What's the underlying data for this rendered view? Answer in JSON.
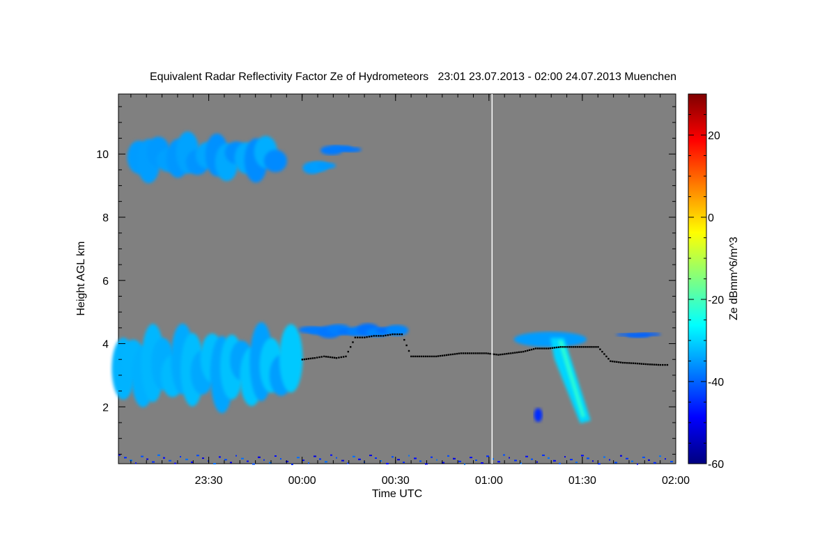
{
  "chart_data": {
    "type": "heatmap",
    "title": "Equivalent Radar Reflectivity Factor Ze of Hydrometeors   23:01 23.07.2013 - 02:00 24.07.2013 Muenchen",
    "xlabel": "Time UTC",
    "ylabel": "Height AGL km",
    "x_unit": "minutes after 23:01 UTC",
    "xlim": [
      0,
      179
    ],
    "ylim": [
      0.2,
      11.9
    ],
    "x_ticks": [
      {
        "value": 29,
        "label": "23:30"
      },
      {
        "value": 59,
        "label": "00:00"
      },
      {
        "value": 89,
        "label": "00:30"
      },
      {
        "value": 119,
        "label": "01:00"
      },
      {
        "value": 149,
        "label": "01:30"
      },
      {
        "value": 179,
        "label": "02:00"
      }
    ],
    "y_ticks": [
      {
        "value": 2,
        "label": "2"
      },
      {
        "value": 4,
        "label": "4"
      },
      {
        "value": 6,
        "label": "6"
      },
      {
        "value": 8,
        "label": "8"
      },
      {
        "value": 10,
        "label": "10"
      }
    ],
    "colorbar": {
      "label": "Ze dBmm^6/m^3",
      "range": [
        -60,
        30
      ],
      "ticks": [
        {
          "value": -60,
          "label": "-60"
        },
        {
          "value": -40,
          "label": "-40"
        },
        {
          "value": -20,
          "label": "-20"
        },
        {
          "value": 0,
          "label": "0"
        },
        {
          "value": 20,
          "label": "20"
        }
      ],
      "colors": [
        "#00007f",
        "#0000ff",
        "#0080ff",
        "#00ffff",
        "#80ff80",
        "#ffff00",
        "#ff8000",
        "#ff0000",
        "#7f0000"
      ]
    },
    "background_color": "#808080",
    "cloud_regions": [
      {
        "description": "cirrus layer",
        "x_range": [
          5,
          52
        ],
        "y_range": [
          9.2,
          10.6
        ],
        "ze_db": -35
      },
      {
        "description": "small cirrus patch",
        "x_range": [
          61,
          68
        ],
        "y_range": [
          9.4,
          9.8
        ],
        "ze_db": -35
      },
      {
        "description": "small cirrus patch",
        "x_range": [
          67,
          76
        ],
        "y_range": [
          10.0,
          10.3
        ],
        "ze_db": -38
      },
      {
        "description": "low cloud base layer",
        "x_range": [
          0,
          57
        ],
        "y_range": [
          2.0,
          4.5
        ],
        "ze_db": -33
      },
      {
        "description": "thin layer",
        "x_range": [
          60,
          91
        ],
        "y_range": [
          4.2,
          4.6
        ],
        "ze_db": -38
      },
      {
        "description": "convective cell with fall streak",
        "x_range": [
          127,
          153
        ],
        "y_range": [
          1.3,
          4.4
        ],
        "ze_db": -30
      },
      {
        "description": "thin layer",
        "x_range": [
          162,
          172
        ],
        "y_range": [
          4.2,
          4.35
        ],
        "ze_db": -40
      },
      {
        "description": "surface clutter",
        "x_range": [
          0,
          179
        ],
        "y_range": [
          0.2,
          0.5
        ],
        "ze_db": -45
      }
    ],
    "cloud_base_line": [
      {
        "x": 59,
        "y": 3.5
      },
      {
        "x": 63,
        "y": 3.55
      },
      {
        "x": 66,
        "y": 3.6
      },
      {
        "x": 70,
        "y": 3.55
      },
      {
        "x": 73,
        "y": 3.6
      },
      {
        "x": 76,
        "y": 4.2
      },
      {
        "x": 79,
        "y": 4.2
      },
      {
        "x": 82,
        "y": 4.25
      },
      {
        "x": 85,
        "y": 4.25
      },
      {
        "x": 88,
        "y": 4.3
      },
      {
        "x": 91,
        "y": 4.3
      },
      {
        "x": 94,
        "y": 3.6
      },
      {
        "x": 98,
        "y": 3.6
      },
      {
        "x": 102,
        "y": 3.6
      },
      {
        "x": 106,
        "y": 3.65
      },
      {
        "x": 110,
        "y": 3.7
      },
      {
        "x": 114,
        "y": 3.7
      },
      {
        "x": 118,
        "y": 3.7
      },
      {
        "x": 122,
        "y": 3.65
      },
      {
        "x": 126,
        "y": 3.7
      },
      {
        "x": 130,
        "y": 3.75
      },
      {
        "x": 134,
        "y": 3.85
      },
      {
        "x": 138,
        "y": 3.85
      },
      {
        "x": 142,
        "y": 3.9
      },
      {
        "x": 146,
        "y": 3.9
      },
      {
        "x": 150,
        "y": 3.9
      },
      {
        "x": 154,
        "y": 3.9
      },
      {
        "x": 158,
        "y": 3.45
      },
      {
        "x": 162,
        "y": 3.4
      },
      {
        "x": 166,
        "y": 3.38
      },
      {
        "x": 170,
        "y": 3.35
      },
      {
        "x": 174,
        "y": 3.33
      },
      {
        "x": 177,
        "y": 3.33
      }
    ],
    "vertical_marker": {
      "x": 120,
      "color": "#ffffff"
    },
    "grid": false
  }
}
